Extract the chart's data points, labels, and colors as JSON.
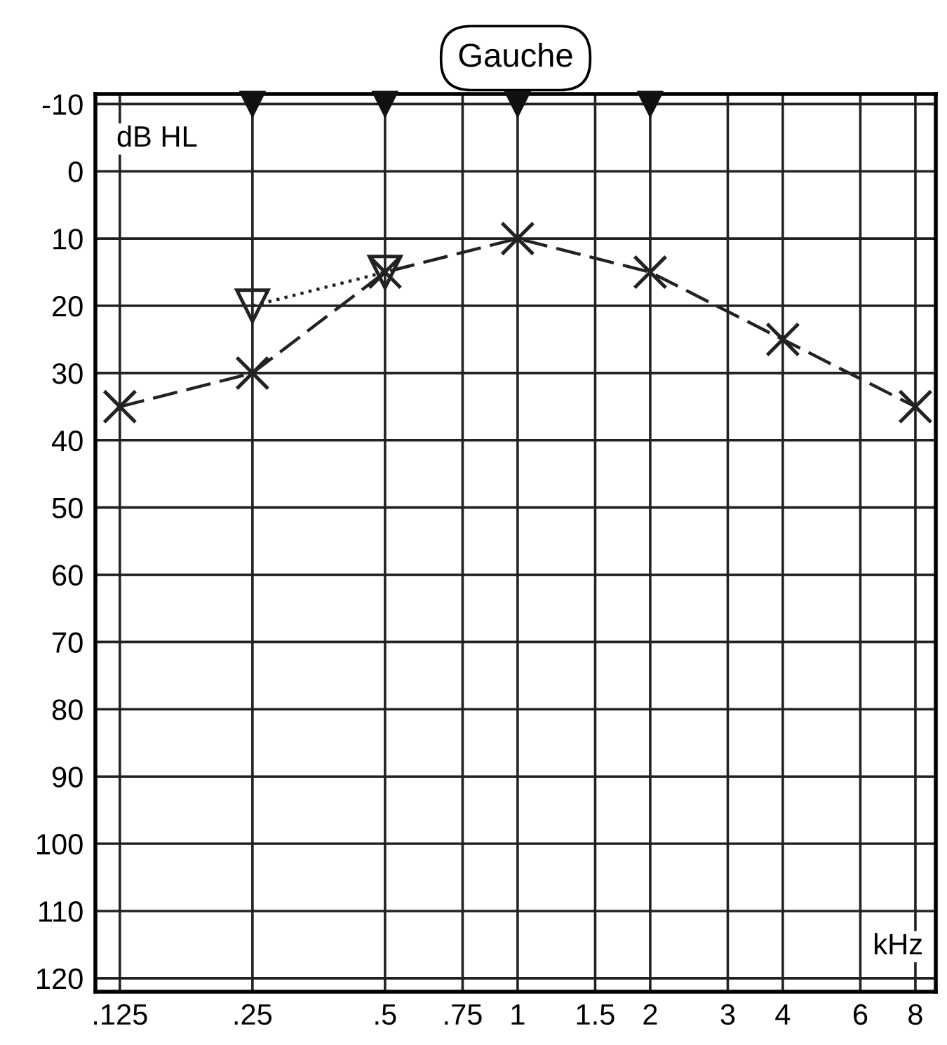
{
  "chart_data": {
    "type": "line",
    "title": "Gauche",
    "xlabel": "kHz",
    "ylabel": "dB HL",
    "log": "x",
    "xlim": [
      0.11,
      8.9
    ],
    "ylim": [
      122,
      -11.5
    ],
    "xticks": [
      {
        "value": 0.125,
        "label": ".125"
      },
      {
        "value": 0.25,
        "label": ".25"
      },
      {
        "value": 0.5,
        "label": ".5"
      },
      {
        "value": 0.75,
        "label": ".75"
      },
      1,
      1.5,
      2,
      3,
      4,
      6,
      8
    ],
    "yticks": [
      -10,
      0,
      10,
      20,
      30,
      40,
      50,
      60,
      70,
      80,
      90,
      100,
      110,
      120
    ],
    "grid": true,
    "series": [
      {
        "color": "#222222",
        "marker": "cross",
        "line_style": "dashed",
        "x": [
          0.125,
          0.25,
          0.5,
          1,
          2,
          4,
          8
        ],
        "values": [
          35,
          30,
          15,
          10,
          15,
          25,
          35
        ]
      },
      {
        "color": "#222222",
        "marker": "triangle",
        "line_style": "dotted",
        "x": [
          0.25,
          0.5
        ],
        "values": [
          20,
          15
        ]
      },
      {
        "type": "scatter",
        "color": "#111111",
        "marker": "triangle",
        "x": [
          0.25,
          0.5,
          1,
          2
        ],
        "values": [
          -10,
          -10,
          -10,
          -10
        ]
      }
    ]
  }
}
